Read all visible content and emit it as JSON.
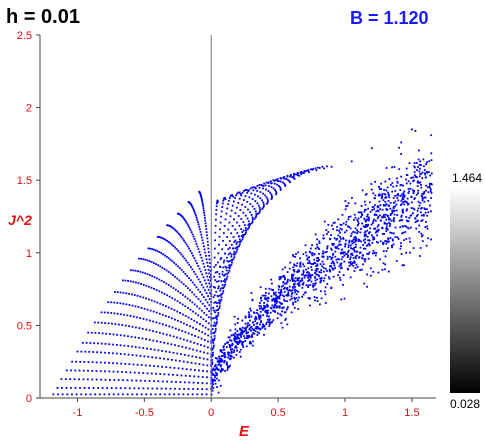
{
  "header": {
    "h_label": "h = 0.01",
    "b_label": "B = 1.120"
  },
  "colorbar": {
    "max_label": "1.464",
    "min_label": "0.028"
  },
  "chart_data": {
    "type": "scatter",
    "xlabel": "E",
    "ylabel": "J^2",
    "xlim": [
      -1.28,
      1.68
    ],
    "ylim": [
      0,
      2.5
    ],
    "x_ticks": [
      -1,
      -0.5,
      0,
      0.5,
      1,
      1.5
    ],
    "x_tick_labels": [
      "-1",
      "-0.5",
      "0",
      "0.5",
      "1",
      "1.5"
    ],
    "y_ticks": [
      0,
      0.5,
      1,
      1.5,
      2,
      2.5
    ],
    "y_tick_labels": [
      "0",
      "0.5",
      "1",
      "1.5",
      "2",
      "2.5"
    ],
    "vertical_line_x": 0,
    "colors": {
      "points": "#0000ee",
      "axis_text": "#dd1111",
      "axis": "#444444"
    },
    "regular_bands": [
      {
        "x": [
          -1.18,
          0.0
        ],
        "y": [
          0.025,
          0.025
        ]
      },
      {
        "x": [
          -1.15,
          0.0
        ],
        "y": [
          0.07,
          0.06
        ]
      },
      {
        "x": [
          -1.12,
          0.0
        ],
        "y": [
          0.13,
          0.1
        ]
      },
      {
        "x": [
          -1.08,
          0.0
        ],
        "y": [
          0.19,
          0.14
        ]
      },
      {
        "x": [
          -1.04,
          0.0
        ],
        "y": [
          0.25,
          0.18
        ]
      },
      {
        "x": [
          -1.0,
          0.0
        ],
        "y": [
          0.32,
          0.22
        ]
      },
      {
        "x": [
          -0.96,
          0.0
        ],
        "y": [
          0.38,
          0.26
        ]
      },
      {
        "x": [
          -0.92,
          0.0
        ],
        "y": [
          0.45,
          0.3
        ]
      },
      {
        "x": [
          -0.87,
          0.0
        ],
        "y": [
          0.52,
          0.34
        ]
      },
      {
        "x": [
          -0.82,
          0.0
        ],
        "y": [
          0.59,
          0.38
        ]
      },
      {
        "x": [
          -0.77,
          0.0
        ],
        "y": [
          0.66,
          0.42
        ]
      },
      {
        "x": [
          -0.72,
          0.0
        ],
        "y": [
          0.73,
          0.46
        ]
      },
      {
        "x": [
          -0.66,
          0.0
        ],
        "y": [
          0.81,
          0.5
        ]
      },
      {
        "x": [
          -0.6,
          0.0
        ],
        "y": [
          0.88,
          0.54
        ]
      },
      {
        "x": [
          -0.54,
          0.0
        ],
        "y": [
          0.96,
          0.58
        ]
      },
      {
        "x": [
          -0.47,
          0.0
        ],
        "y": [
          1.03,
          0.62
        ]
      },
      {
        "x": [
          -0.4,
          0.0
        ],
        "y": [
          1.11,
          0.66
        ]
      },
      {
        "x": [
          -0.33,
          0.0
        ],
        "y": [
          1.19,
          0.7
        ]
      },
      {
        "x": [
          -0.25,
          0.0
        ],
        "y": [
          1.27,
          0.74
        ]
      },
      {
        "x": [
          -0.17,
          0.0
        ],
        "y": [
          1.35,
          0.78
        ]
      },
      {
        "x": [
          -0.09,
          0.0
        ],
        "y": [
          1.42,
          0.82
        ]
      }
    ],
    "arc_region": {
      "x": [
        0.0,
        0.9
      ],
      "y_top": [
        1.5,
        1.65
      ],
      "y_bottom": [
        0.05,
        0.9
      ]
    },
    "chaotic_cloud": {
      "x": [
        0.0,
        1.65
      ],
      "center": [
        0.05,
        1.4
      ],
      "spread": 0.15
    },
    "tail_points": [
      {
        "x": 0.95,
        "y": 1.12
      },
      {
        "x": 1.1,
        "y": 1.08
      },
      {
        "x": 1.22,
        "y": 1.0
      },
      {
        "x": 1.35,
        "y": 1.05
      },
      {
        "x": 1.58,
        "y": 1.12
      },
      {
        "x": 1.62,
        "y": 1.1
      },
      {
        "x": 1.02,
        "y": 0.97
      },
      {
        "x": 1.3,
        "y": 0.92
      },
      {
        "x": 1.5,
        "y": 1.85
      },
      {
        "x": 1.42,
        "y": 1.76
      },
      {
        "x": 1.2,
        "y": 1.72
      },
      {
        "x": 1.05,
        "y": 1.63
      }
    ]
  }
}
